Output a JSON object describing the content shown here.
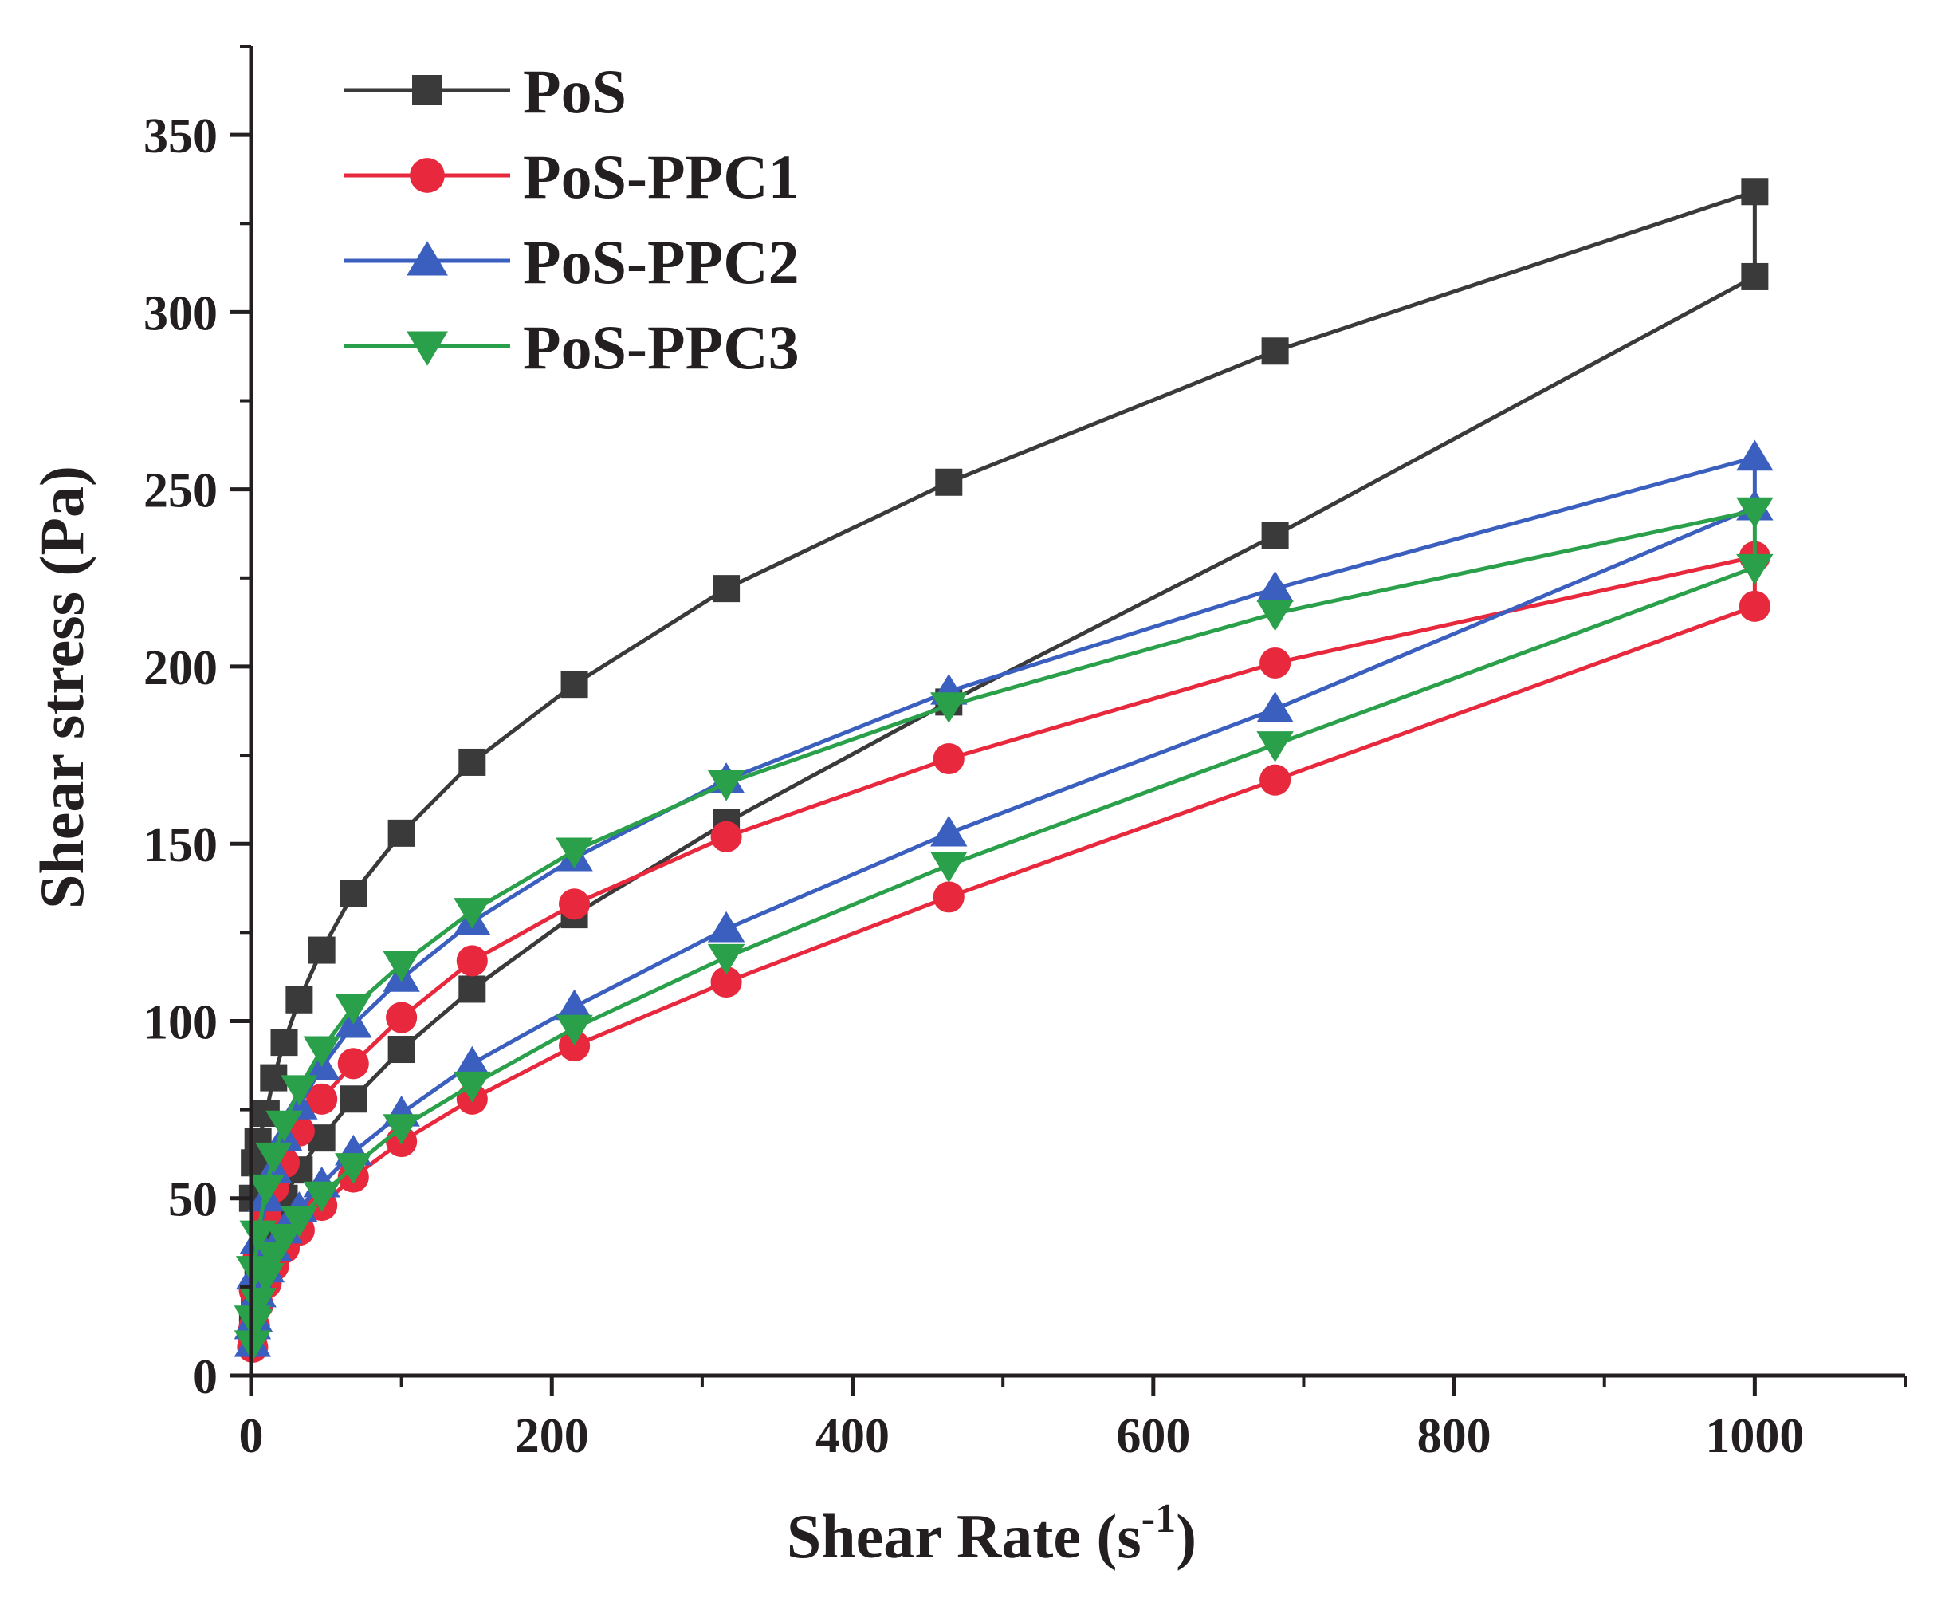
{
  "chart_data": {
    "type": "line",
    "title": "",
    "xlabel": "Shear Rate (s",
    "xlabel_superscript": "-1",
    "xlabel_close": ")",
    "ylabel": "Shear stress (Pa)",
    "xlim": [
      0,
      1100
    ],
    "ylim": [
      0,
      375
    ],
    "xticks": [
      0,
      200,
      400,
      600,
      800,
      1000
    ],
    "yticks": [
      0,
      50,
      100,
      150,
      200,
      250,
      300,
      350
    ],
    "grid": false,
    "legend_position": "top-left",
    "series": [
      {
        "name": "PoS",
        "color": "#3a3a3a",
        "marker": "square",
        "up_x": [
          1,
          2.2,
          4.6,
          10,
          15,
          22,
          32,
          47,
          68,
          100,
          147,
          215,
          316,
          464,
          681,
          1000
        ],
        "up_y": [
          50,
          60,
          66,
          74,
          84,
          94,
          106,
          120,
          136,
          153,
          173,
          195,
          222,
          252,
          289,
          334
        ],
        "down_x": [
          1000,
          681,
          464,
          316,
          215,
          147,
          100,
          68,
          47,
          32,
          22,
          15,
          10,
          4.6,
          2.2,
          1
        ],
        "down_y": [
          310,
          237,
          190,
          156,
          130,
          109,
          92,
          78,
          67,
          58,
          50,
          43,
          36,
          27,
          20,
          14
        ]
      },
      {
        "name": "PoS-PPC1",
        "color": "#e8283c",
        "marker": "circle",
        "up_x": [
          1,
          2.2,
          4.6,
          10,
          15,
          22,
          32,
          47,
          68,
          100,
          147,
          215,
          316,
          464,
          681,
          1000
        ],
        "up_y": [
          12,
          24,
          33,
          45,
          53,
          60,
          69,
          78,
          88,
          101,
          117,
          133,
          152,
          174,
          201,
          231
        ],
        "down_x": [
          1000,
          681,
          464,
          316,
          215,
          147,
          100,
          68,
          47,
          32,
          22,
          15,
          10,
          4.6,
          2.2,
          1
        ],
        "down_y": [
          217,
          168,
          135,
          111,
          93,
          78,
          66,
          56,
          48,
          41,
          36,
          31,
          26,
          20,
          14,
          8
        ]
      },
      {
        "name": "PoS-PPC2",
        "color": "#3b5fbf",
        "marker": "triangle-up",
        "up_x": [
          1,
          2.2,
          4.6,
          10,
          15,
          22,
          32,
          47,
          68,
          100,
          147,
          215,
          316,
          464,
          681,
          1000
        ],
        "up_y": [
          14,
          28,
          38,
          50,
          58,
          67,
          76,
          87,
          99,
          112,
          128,
          146,
          168,
          193,
          222,
          259
        ],
        "down_x": [
          1000,
          681,
          464,
          316,
          215,
          147,
          100,
          68,
          47,
          32,
          22,
          15,
          10,
          4.6,
          2.2,
          1
        ],
        "down_y": [
          245,
          188,
          153,
          126,
          104,
          88,
          74,
          63,
          54,
          47,
          41,
          36,
          30,
          23,
          16,
          9
        ]
      },
      {
        "name": "PoS-PPC3",
        "color": "#2aa04a",
        "marker": "triangle-down",
        "up_x": [
          1,
          2.2,
          4.6,
          10,
          15,
          22,
          32,
          47,
          68,
          100,
          147,
          215,
          316,
          464,
          681,
          1000
        ],
        "up_y": [
          16,
          30,
          40,
          53,
          62,
          71,
          81,
          92,
          104,
          116,
          131,
          148,
          167,
          189,
          215,
          244
        ],
        "down_x": [
          1000,
          681,
          464,
          316,
          215,
          147,
          100,
          68,
          47,
          32,
          22,
          15,
          10,
          4.6,
          2.2,
          1
        ],
        "down_y": [
          228,
          178,
          144,
          118,
          98,
          82,
          70,
          59,
          51,
          44,
          39,
          34,
          28,
          21,
          15,
          9
        ]
      }
    ]
  }
}
